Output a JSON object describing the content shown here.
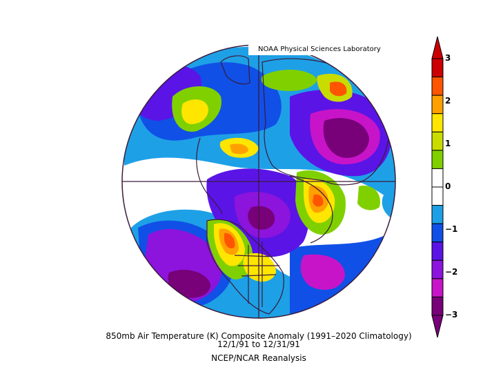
{
  "credit": "NOAA Physical Sciences Laboratory",
  "caption": {
    "line1": "850mb Air Temperature (K) Composite Anomaly (1991–2020 Climatology)",
    "line2": "12/1/91  to 12/31/91",
    "line3": "NCEP/NCAR Reanalysis"
  },
  "colorbar": {
    "ticks": [
      "3",
      "2",
      "1",
      "0",
      "−1",
      "−2",
      "−3"
    ],
    "colors": [
      "#cc0000",
      "#ff5500",
      "#ffa000",
      "#ffe600",
      "#c8dc00",
      "#80d000",
      "#ffffff",
      "#ffffff",
      "#1ea0e6",
      "#1050e6",
      "#5a14e6",
      "#8c14dc",
      "#c814c8",
      "#780078"
    ],
    "min": -3,
    "max": 3
  },
  "map": {
    "projection": "north-polar-stereographic",
    "field": "850mb air temperature anomaly"
  }
}
